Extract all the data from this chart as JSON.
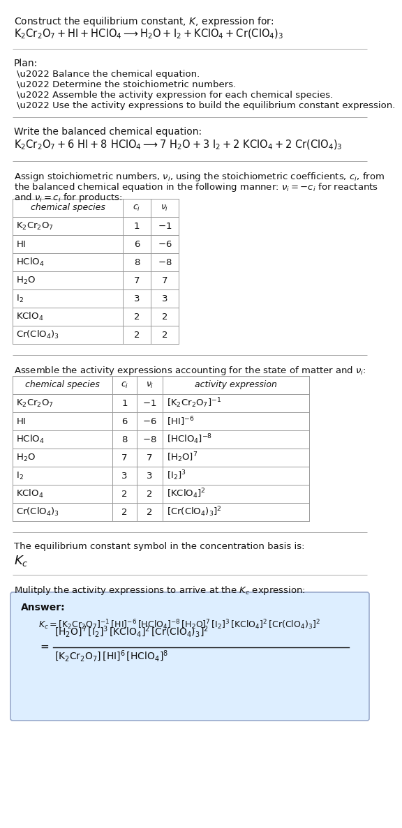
{
  "title_line1": "Construct the equilibrium constant, $K$, expression for:",
  "title_reaction": "$\\mathrm{K_2Cr_2O_7 + HI + HClO_4 \\longrightarrow H_2O + I_2 + KClO_4 + Cr(ClO_4)_3}$",
  "plan_header": "Plan:",
  "plan_items": [
    "\\u2022 Balance the chemical equation.",
    "\\u2022 Determine the stoichiometric numbers.",
    "\\u2022 Assemble the activity expression for each chemical species.",
    "\\u2022 Use the activity expressions to build the equilibrium constant expression."
  ],
  "balanced_header": "Write the balanced chemical equation:",
  "balanced_eq": "$\\mathrm{K_2Cr_2O_7 + 6\\ HI + 8\\ HClO_4 \\longrightarrow 7\\ H_2O + 3\\ I_2 + 2\\ KClO_4 + 2\\ Cr(ClO_4)_3}$",
  "stoich_header1": "Assign stoichiometric numbers, $\\nu_i$, using the stoichiometric coefficients, $c_i$, from",
  "stoich_header2": "the balanced chemical equation in the following manner: $\\nu_i = -c_i$ for reactants",
  "stoich_header3": "and $\\nu_i = c_i$ for products:",
  "table1_col_headers": [
    "chemical species",
    "$c_i$",
    "$\\nu_i$"
  ],
  "table1_rows": [
    [
      "$\\mathrm{K_2Cr_2O_7}$",
      "1",
      "$-1$"
    ],
    [
      "$\\mathrm{HI}$",
      "6",
      "$-6$"
    ],
    [
      "$\\mathrm{HClO_4}$",
      "8",
      "$-8$"
    ],
    [
      "$\\mathrm{H_2O}$",
      "7",
      "7"
    ],
    [
      "$\\mathrm{I_2}$",
      "3",
      "3"
    ],
    [
      "$\\mathrm{KClO_4}$",
      "2",
      "2"
    ],
    [
      "$\\mathrm{Cr(ClO_4)_3}$",
      "2",
      "2"
    ]
  ],
  "activity_header": "Assemble the activity expressions accounting for the state of matter and $\\nu_i$:",
  "table2_col_headers": [
    "chemical species",
    "$c_i$",
    "$\\nu_i$",
    "activity expression"
  ],
  "table2_rows": [
    [
      "$\\mathrm{K_2Cr_2O_7}$",
      "1",
      "$-1$",
      "$[\\mathrm{K_2Cr_2O_7}]^{-1}$"
    ],
    [
      "$\\mathrm{HI}$",
      "6",
      "$-6$",
      "$[\\mathrm{HI}]^{-6}$"
    ],
    [
      "$\\mathrm{HClO_4}$",
      "8",
      "$-8$",
      "$[\\mathrm{HClO_4}]^{-8}$"
    ],
    [
      "$\\mathrm{H_2O}$",
      "7",
      "7",
      "$[\\mathrm{H_2O}]^7$"
    ],
    [
      "$\\mathrm{I_2}$",
      "3",
      "3",
      "$[\\mathrm{I_2}]^3$"
    ],
    [
      "$\\mathrm{KClO_4}$",
      "2",
      "2",
      "$[\\mathrm{KClO_4}]^2$"
    ],
    [
      "$\\mathrm{Cr(ClO_4)_3}$",
      "2",
      "2",
      "$[\\mathrm{Cr(ClO_4)_3}]^2$"
    ]
  ],
  "kc_header": "The equilibrium constant symbol in the concentration basis is:",
  "kc_symbol": "$K_c$",
  "multiply_header": "Mulitply the activity expressions to arrive at the $K_c$ expression:",
  "answer_label": "Answer:",
  "answer_line1": "$K_c = [\\mathrm{K_2Cr_2O_7}]^{-1}\\,[\\mathrm{HI}]^{-6}\\,[\\mathrm{HClO_4}]^{-8}\\,[\\mathrm{H_2O}]^7\\,[\\mathrm{I_2}]^3\\,[\\mathrm{KClO_4}]^2\\,[\\mathrm{Cr(ClO_4)_3}]^2$",
  "answer_line2a": "$[\\mathrm{H_2O}]^7\\,[\\mathrm{I_2}]^3\\,[\\mathrm{KClO_4}]^2\\,[\\mathrm{Cr(ClO_4)_3}]^2$",
  "answer_line2b": "$[\\mathrm{K_2Cr_2O_7}]\\,[\\mathrm{HI}]^6\\,[\\mathrm{HClO_4}]^8$",
  "bg_color": "#ffffff",
  "line_color": "#aaaaaa",
  "table_line_color": "#999999",
  "answer_box_bg": "#ddeeff",
  "answer_box_border": "#99aacc"
}
